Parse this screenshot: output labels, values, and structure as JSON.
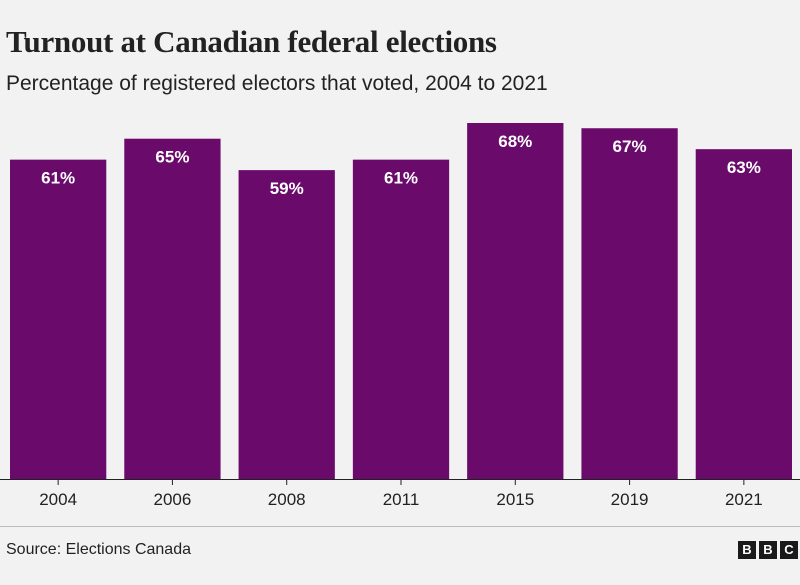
{
  "chart_data": {
    "type": "bar",
    "title": "Turnout at Canadian federal elections",
    "subtitle": "Percentage of registered electors that voted, 2004 to 2021",
    "categories": [
      "2004",
      "2006",
      "2008",
      "2011",
      "2015",
      "2019",
      "2021"
    ],
    "values": [
      61,
      65,
      59,
      61,
      68,
      67,
      63
    ],
    "data_labels": [
      "61%",
      "65%",
      "59%",
      "61%",
      "68%",
      "67%",
      "63%"
    ],
    "xlabel": "",
    "ylabel": "",
    "ylim": [
      0,
      68
    ],
    "grid": false,
    "legend": "none",
    "bar_color": "#6a0a6b",
    "label_color": "#ffffff"
  },
  "footer": {
    "source": "Source: Elections Canada",
    "logo_letters": [
      "B",
      "B",
      "C"
    ]
  }
}
